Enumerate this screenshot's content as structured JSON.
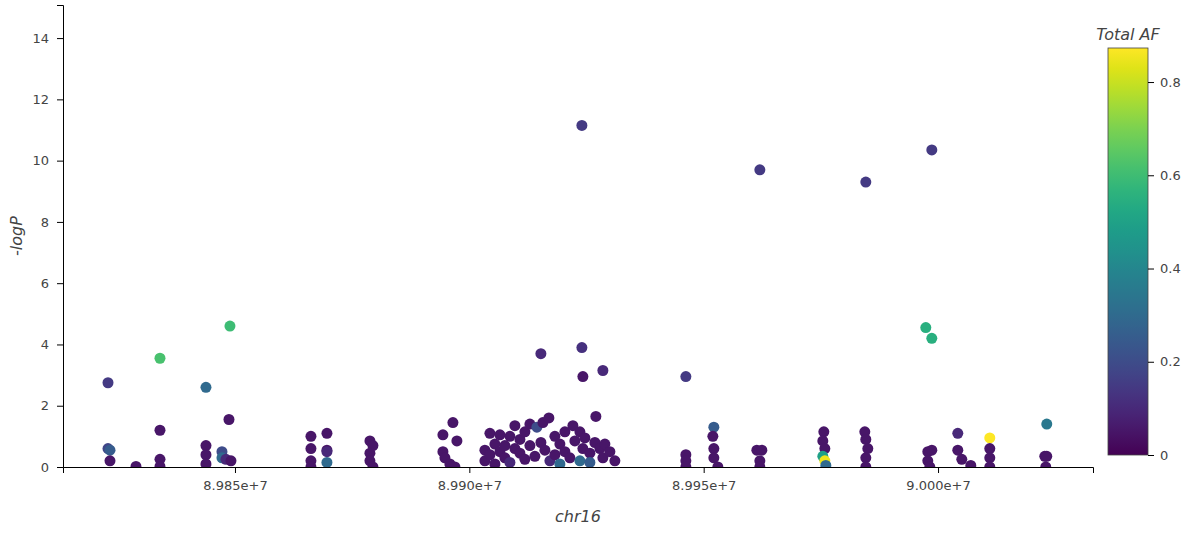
{
  "chart_data": {
    "type": "scatter",
    "x_label": "chr16",
    "y_label": "-logP",
    "xlim": [
      89813310,
      90033060
    ],
    "ylim": [
      0,
      15.08
    ],
    "xticks": [
      {
        "value": 89850000,
        "label": "8.985e+7"
      },
      {
        "value": 89900000,
        "label": "8.990e+7"
      },
      {
        "value": 89950000,
        "label": "8.995e+7"
      },
      {
        "value": 90000000,
        "label": "9.000e+7"
      }
    ],
    "yticks": [
      0,
      2,
      4,
      6,
      8,
      10,
      12,
      14
    ],
    "marker": "circle",
    "colorbar": {
      "title": "Total AF",
      "lim": [
        0,
        0.873
      ],
      "ticks": [
        0,
        0.2,
        0.4,
        0.6,
        0.8
      ]
    },
    "x": [
      89822910,
      89822910,
      89823335,
      89823335,
      89828881,
      89834000,
      89834000,
      89834000,
      89834000,
      89843812,
      89843812,
      89843812,
      89843812,
      89847225,
      89847225,
      89848078,
      89849144,
      89848931,
      89848718,
      89866208,
      89866208,
      89866208,
      89866208,
      89869621,
      89869621,
      89869621,
      89869621,
      89878793,
      89879433,
      89878793,
      89878793,
      89879433,
      89894364,
      89896497,
      89897350,
      89894364,
      89894791,
      89895857,
      89896924,
      89903323,
      89903323,
      89904390,
      89904390,
      89905456,
      89905456,
      89906523,
      89906523,
      89907589,
      89907589,
      89908656,
      89908656,
      89909722,
      89909722,
      89910789,
      89910789,
      89911855,
      89911855,
      89912922,
      89912922,
      89913988,
      89914415,
      89915268,
      89915268,
      89915694,
      89916121,
      89916974,
      89917188,
      89918254,
      89918254,
      89919321,
      89919321,
      89920387,
      89920387,
      89921454,
      89922094,
      89922520,
      89923587,
      89923587,
      89924013,
      89924013,
      89924226,
      89924226,
      89924653,
      89925720,
      89925720,
      89926786,
      89926999,
      89927853,
      89928493,
      89928493,
      89928919,
      89929986,
      89931052,
      89946196,
      89946196,
      89946196,
      89946196,
      89952168,
      89951955,
      89952168,
      89952168,
      89953021,
      89961980,
      89961340,
      89962406,
      89961980,
      89961980,
      89975631,
      89975418,
      89975845,
      89975418,
      89975845,
      89976058,
      89984590,
      89984377,
      89984590,
      89985017,
      89984590,
      89984590,
      89997388,
      89998668,
      89998668,
      89997815,
      89998668,
      89997815,
      89998241,
      90004214,
      90004214,
      90005067,
      90006986,
      90011039,
      90011039,
      90011039,
      90011039,
      90023197,
      90022771,
      90023197,
      90022984
    ],
    "values": [
      2.75,
      0.6,
      0.55,
      0.2,
      0.02,
      3.55,
      1.2,
      0.25,
      0.02,
      2.6,
      0.7,
      0.4,
      0.1,
      0.5,
      0.3,
      0.25,
      0.2,
      4.6,
      1.55,
      1.0,
      0.6,
      0.2,
      0.0,
      1.1,
      0.55,
      0.5,
      0.15,
      0.85,
      0.7,
      0.45,
      0.2,
      0.0,
      1.05,
      1.45,
      0.85,
      0.5,
      0.3,
      0.1,
      0.0,
      0.55,
      0.2,
      1.1,
      0.4,
      0.75,
      0.1,
      1.05,
      0.5,
      0.3,
      0.7,
      1.0,
      0.15,
      0.6,
      1.35,
      0.45,
      0.9,
      1.15,
      0.25,
      0.7,
      1.4,
      0.35,
      1.3,
      3.7,
      0.8,
      1.45,
      0.55,
      1.6,
      0.2,
      1.0,
      0.4,
      0.75,
      0.1,
      1.15,
      0.5,
      0.3,
      1.35,
      0.85,
      1.15,
      0.2,
      11.15,
      3.9,
      2.95,
      0.6,
      0.95,
      0.45,
      0.15,
      0.8,
      1.65,
      0.6,
      3.15,
      0.3,
      0.75,
      0.5,
      0.2,
      2.95,
      0.4,
      0.2,
      0.0,
      1.3,
      1.0,
      0.6,
      0.3,
      0.0,
      9.7,
      0.55,
      0.55,
      0.2,
      0.0,
      1.15,
      0.85,
      0.6,
      0.35,
      0.2,
      0.05,
      9.3,
      1.15,
      0.9,
      0.6,
      0.3,
      0.0,
      4.55,
      4.2,
      10.35,
      0.5,
      0.55,
      0.2,
      0.0,
      1.1,
      0.55,
      0.25,
      0.05,
      0.95,
      0.6,
      0.3,
      0.0,
      1.4,
      0.35,
      0.35,
      0.0
    ],
    "af": [
      0.15,
      0.18,
      0.25,
      0.05,
      0.05,
      0.62,
      0.05,
      0.05,
      0.05,
      0.3,
      0.05,
      0.05,
      0.05,
      0.2,
      0.3,
      0.1,
      0.05,
      0.6,
      0.05,
      0.05,
      0.05,
      0.05,
      0.05,
      0.05,
      0.05,
      0.1,
      0.3,
      0.05,
      0.05,
      0.05,
      0.05,
      0.05,
      0.05,
      0.05,
      0.05,
      0.05,
      0.05,
      0.05,
      0.05,
      0.05,
      0.05,
      0.05,
      0.05,
      0.05,
      0.05,
      0.05,
      0.05,
      0.05,
      0.05,
      0.05,
      0.1,
      0.05,
      0.05,
      0.05,
      0.05,
      0.05,
      0.05,
      0.05,
      0.05,
      0.05,
      0.2,
      0.1,
      0.05,
      0.05,
      0.05,
      0.05,
      0.1,
      0.05,
      0.05,
      0.05,
      0.3,
      0.05,
      0.05,
      0.05,
      0.05,
      0.05,
      0.05,
      0.3,
      0.15,
      0.12,
      0.05,
      0.05,
      0.05,
      0.05,
      0.25,
      0.05,
      0.05,
      0.05,
      0.1,
      0.05,
      0.05,
      0.05,
      0.05,
      0.15,
      0.05,
      0.05,
      0.05,
      0.25,
      0.05,
      0.05,
      0.05,
      0.05,
      0.15,
      0.05,
      0.05,
      0.05,
      0.05,
      0.05,
      0.05,
      0.05,
      0.5,
      0.85,
      0.3,
      0.15,
      0.05,
      0.05,
      0.05,
      0.05,
      0.05,
      0.55,
      0.55,
      0.15,
      0.05,
      0.05,
      0.05,
      0.05,
      0.1,
      0.05,
      0.05,
      0.05,
      0.87,
      0.05,
      0.05,
      0.05,
      0.35,
      0.05,
      0.05,
      0.05
    ]
  }
}
